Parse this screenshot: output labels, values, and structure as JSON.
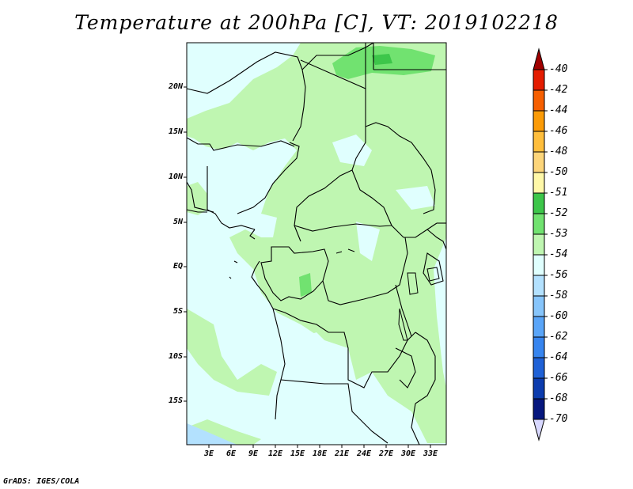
{
  "title": "Temperature at 200hPa [C], VT: 2019102218",
  "footer": "GrADS: IGES/COLA",
  "map": {
    "y_ticks": [
      "20N",
      "15N",
      "10N",
      "5N",
      "EQ",
      "5S",
      "10S",
      "15S"
    ],
    "x_ticks": [
      "3E",
      "6E",
      "9E",
      "12E",
      "15E",
      "18E",
      "21E",
      "24E",
      "27E",
      "30E",
      "33E"
    ],
    "background_color": "#e0fffe"
  },
  "colorbar": {
    "labels": [
      "-40",
      "-42",
      "-44",
      "-46",
      "-48",
      "-50",
      "-51",
      "-52",
      "-53",
      "-54",
      "-56",
      "-58",
      "-60",
      "-62",
      "-64",
      "-66",
      "-68",
      "-70"
    ],
    "colors": [
      "#a00000",
      "#e41c00",
      "#f65f00",
      "#fb9b07",
      "#ffbe3c",
      "#fcd57a",
      "#fff8a8",
      "#3dc64a",
      "#71e270",
      "#bff6b1",
      "#e0fffe",
      "#b3e1fe",
      "#87c5fb",
      "#5aa5f8",
      "#3785ef",
      "#1f61d6",
      "#0c3cae",
      "#06177e",
      "#d8d8ff"
    ]
  }
}
